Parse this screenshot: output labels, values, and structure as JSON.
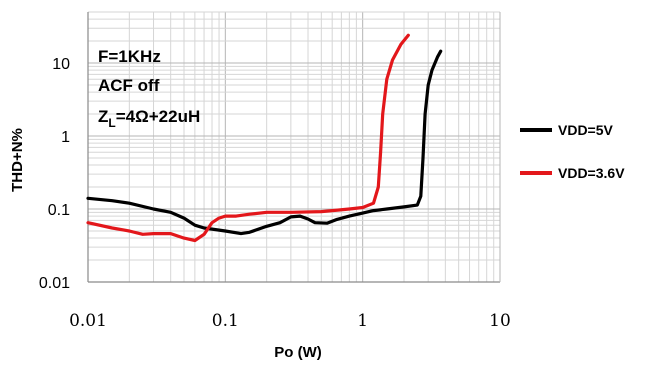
{
  "chart_data": {
    "type": "line",
    "title": "",
    "xlabel": "Po (W)",
    "ylabel": "THD+N%",
    "x_scale": "log",
    "y_scale": "log",
    "xlim": [
      0.01,
      10
    ],
    "ylim": [
      0.01,
      50
    ],
    "grid": true,
    "legend_position": "right",
    "x_tick_labels": [
      "0.01",
      "0.1",
      "1",
      "10"
    ],
    "y_tick_labels": [
      "0.01",
      "0.1",
      "1",
      "10"
    ],
    "annotations": [
      "F=1KHz",
      "ACF  off",
      "Z",
      "L",
      "=4Ω+22uH"
    ],
    "series": [
      {
        "name": "VDD=5V",
        "color": "#000000",
        "points": [
          [
            0.01,
            0.14
          ],
          [
            0.015,
            0.13
          ],
          [
            0.02,
            0.12
          ],
          [
            0.03,
            0.1
          ],
          [
            0.04,
            0.09
          ],
          [
            0.05,
            0.075
          ],
          [
            0.06,
            0.06
          ],
          [
            0.07,
            0.055
          ],
          [
            0.1,
            0.05
          ],
          [
            0.13,
            0.046
          ],
          [
            0.15,
            0.048
          ],
          [
            0.2,
            0.058
          ],
          [
            0.25,
            0.065
          ],
          [
            0.3,
            0.078
          ],
          [
            0.35,
            0.08
          ],
          [
            0.4,
            0.073
          ],
          [
            0.45,
            0.065
          ],
          [
            0.55,
            0.064
          ],
          [
            0.65,
            0.072
          ],
          [
            0.8,
            0.08
          ],
          [
            1.0,
            0.088
          ],
          [
            1.2,
            0.095
          ],
          [
            1.5,
            0.1
          ],
          [
            2.0,
            0.107
          ],
          [
            2.5,
            0.113
          ],
          [
            2.65,
            0.15
          ],
          [
            2.75,
            0.5
          ],
          [
            2.85,
            2.0
          ],
          [
            3.0,
            5.0
          ],
          [
            3.2,
            8.0
          ],
          [
            3.5,
            12.0
          ],
          [
            3.7,
            14.5
          ]
        ]
      },
      {
        "name": "VDD=3.6V",
        "color": "#e3171b",
        "points": [
          [
            0.01,
            0.065
          ],
          [
            0.015,
            0.055
          ],
          [
            0.02,
            0.05
          ],
          [
            0.025,
            0.045
          ],
          [
            0.03,
            0.046
          ],
          [
            0.04,
            0.046
          ],
          [
            0.05,
            0.04
          ],
          [
            0.06,
            0.037
          ],
          [
            0.07,
            0.045
          ],
          [
            0.08,
            0.065
          ],
          [
            0.09,
            0.075
          ],
          [
            0.1,
            0.08
          ],
          [
            0.12,
            0.08
          ],
          [
            0.15,
            0.085
          ],
          [
            0.2,
            0.09
          ],
          [
            0.3,
            0.09
          ],
          [
            0.5,
            0.092
          ],
          [
            0.6,
            0.095
          ],
          [
            0.8,
            0.1
          ],
          [
            1.0,
            0.105
          ],
          [
            1.2,
            0.12
          ],
          [
            1.3,
            0.2
          ],
          [
            1.35,
            0.6
          ],
          [
            1.4,
            2.0
          ],
          [
            1.5,
            6.0
          ],
          [
            1.65,
            11.0
          ],
          [
            1.9,
            18.0
          ],
          [
            2.15,
            24.0
          ]
        ]
      }
    ]
  }
}
